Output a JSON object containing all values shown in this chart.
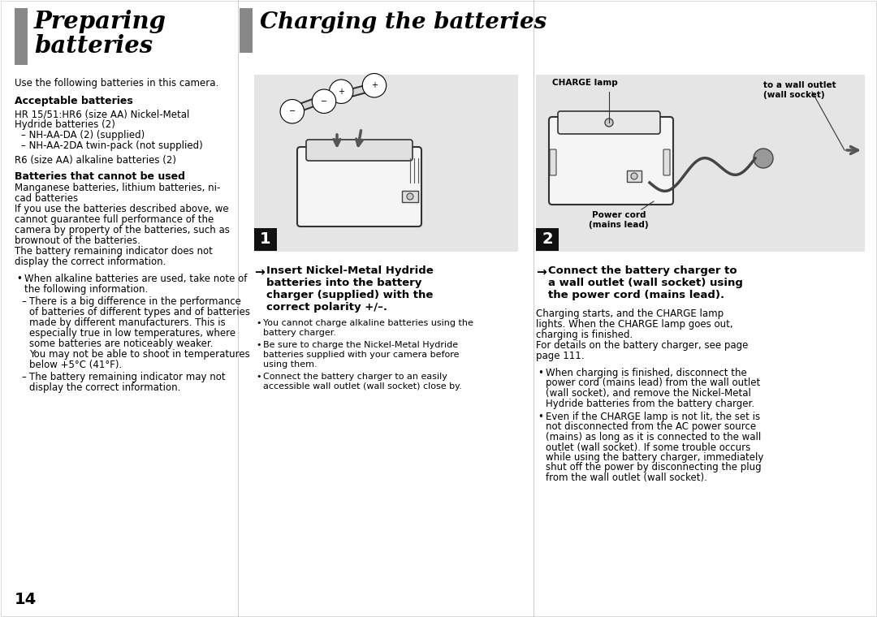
{
  "bg_color": "#ffffff",
  "page_number": "14",
  "bar_color": "#888888",
  "left_title1": "Preparing",
  "left_title2": "batteries",
  "right_title": "Charging the batteries",
  "subtitle": "Use the following batteries in this camera.",
  "sec1_title": "Acceptable batteries",
  "sec1_lines": [
    "HR 15/51:HR6 (size AA) Nickel-Metal",
    "Hydride batteries (2)",
    "– NH-AA-DA (2) (supplied)",
    "– NH-AA-2DA twin-pack (not supplied)"
  ],
  "sec1_extra": "R6 (size AA) alkaline batteries (2)",
  "sec2_title": "Batteries that cannot be used",
  "sec2_lines": [
    "Manganese batteries, lithium batteries, ni-",
    "cad batteries",
    "If you use the batteries described above, we",
    "cannot guarantee full performance of the",
    "camera by property of the batteries, such as",
    "brownout of the batteries.",
    "The battery remaining indicator does not",
    "display the correct information."
  ],
  "bullet1_text": "When alkaline batteries are used, take note of\nthe following information.",
  "dash1_text": "There is a big difference in the performance\nof batteries of different types and of batteries\nmade by different manufacturers. This is\nespecially true in low temperatures, where\nsome batteries are noticeably weaker.\nYou may not be able to shoot in temperatures\nbelow +5°C (41°F).",
  "dash2_text": "The battery remaining indicator may not\ndisplay the correct information.",
  "step1_label": "1",
  "step2_label": "2",
  "img_bg": "#e5e5e5",
  "instr1_arrow": "→",
  "instr1_bold": "Insert Nickel-Metal Hydride\nbatteries into the battery\ncharger (supplied) with the\ncorrect polarity +/–.",
  "instr1_bullets": [
    "You cannot charge alkaline batteries using the\nbattery charger.",
    "Be sure to charge the Nickel-Metal Hydride\nbatteries supplied with your camera before\nusing them.",
    "Connect the battery charger to an easily\naccessible wall outlet (wall socket) close by."
  ],
  "charge_lamp": "CHARGE lamp",
  "wall_outlet": "to a wall outlet\n(wall socket)",
  "power_cord": "Power cord\n(mains lead)",
  "instr2_arrow": "→",
  "instr2_bold": "Connect the battery charger to\na wall outlet (wall socket) using\nthe power cord (mains lead).",
  "body1_lines": [
    "Charging starts, and the CHARGE lamp",
    "lights. When the CHARGE lamp goes out,",
    "charging is finished.",
    "For details on the battery charger, see page",
    "page 111."
  ],
  "rbullet1": "When charging is finished, disconnect the\npower cord (mains lead) from the wall outlet\n(wall socket), and remove the Nickel-Metal\nHydride batteries from the battery charger.",
  "rbullet2": "Even if the CHARGE lamp is not lit, the set is\nnot disconnected from the AC power source\n(mains) as long as it is connected to the wall\noutlet (wall socket). If some trouble occurs\nwhile using the battery charger, immediately\nshut off the power by disconnecting the plug\nfrom the wall outlet (wall socket)."
}
